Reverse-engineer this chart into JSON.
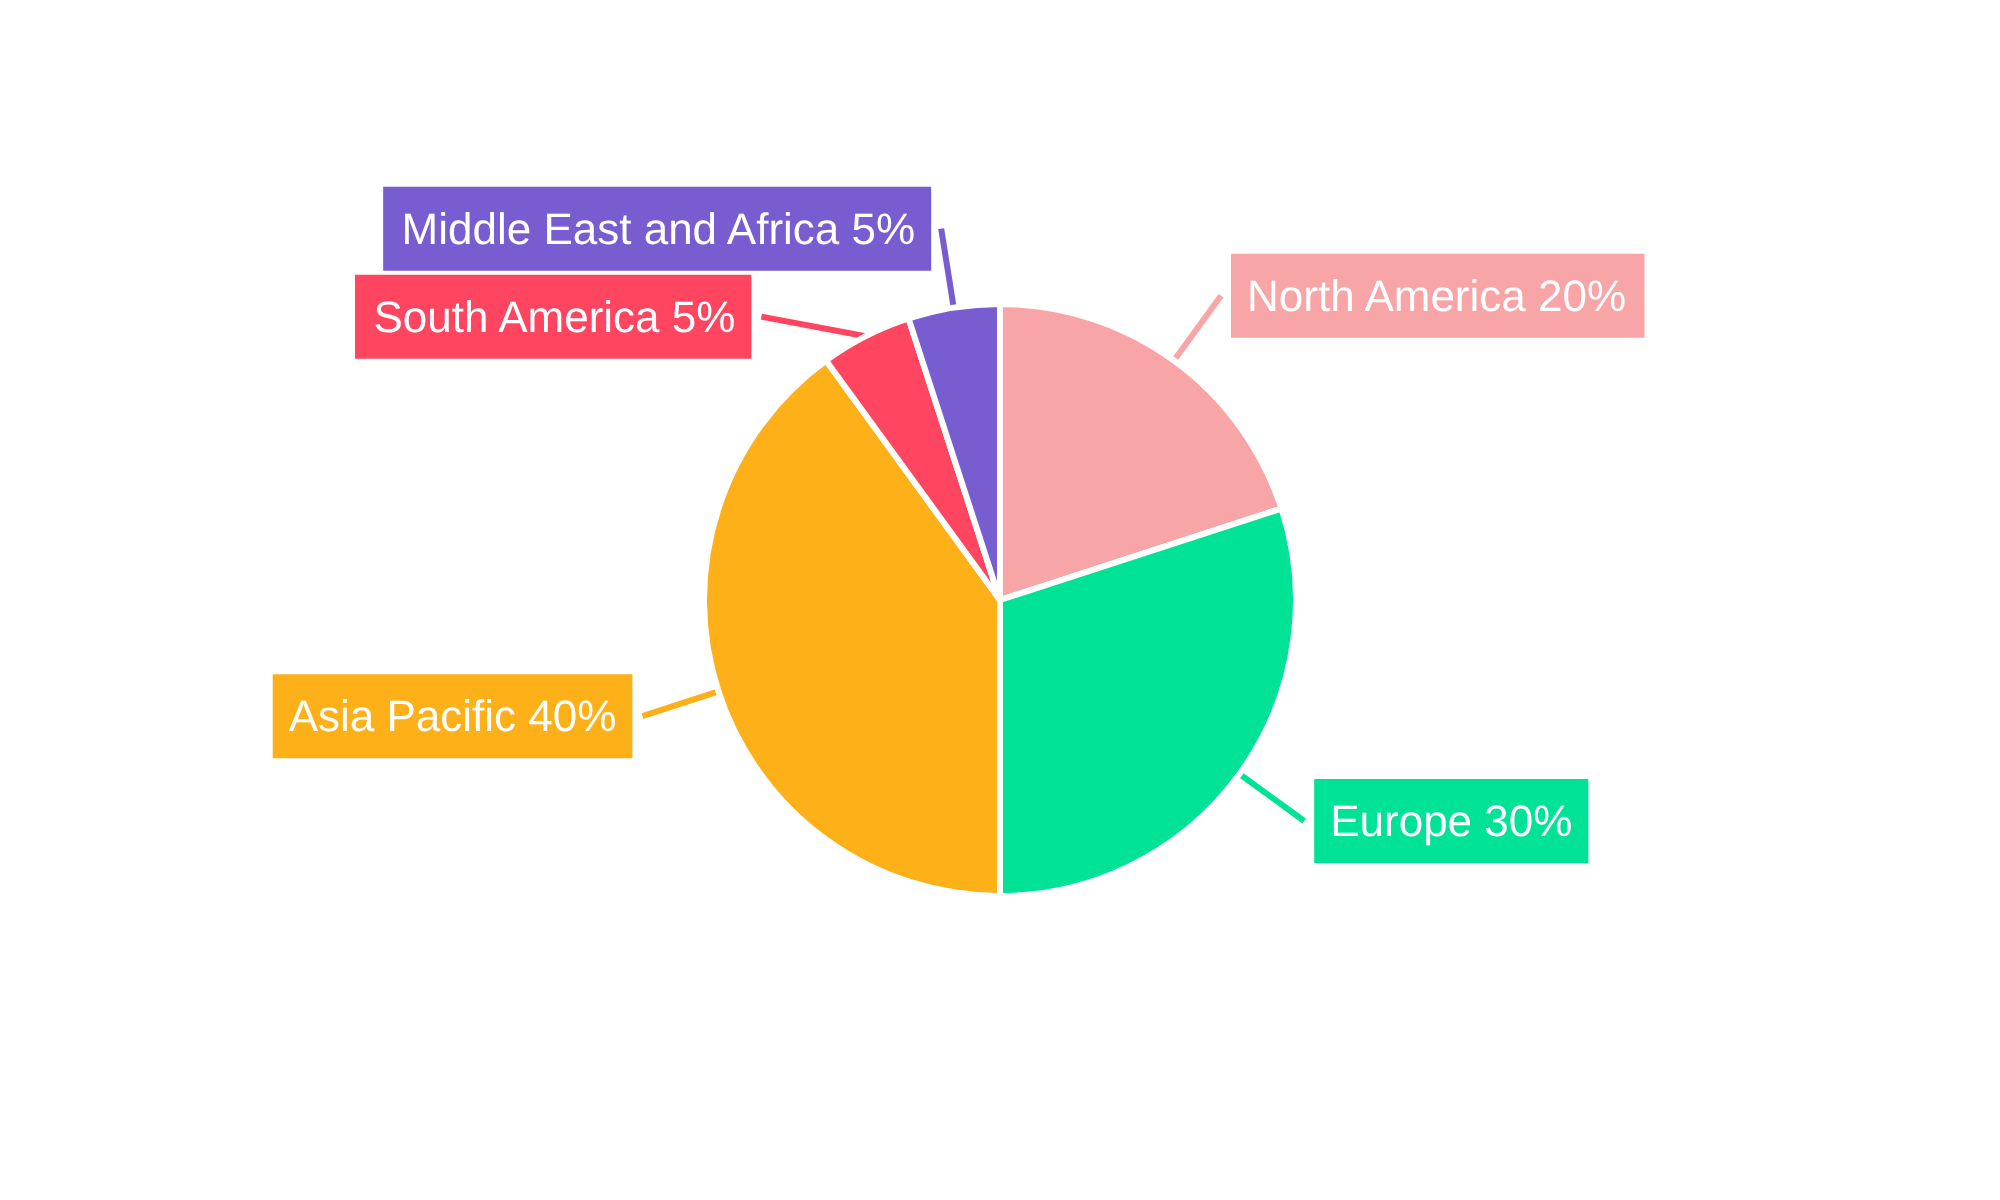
{
  "chart_data": {
    "type": "pie",
    "categories": [
      "North America",
      "Europe",
      "Asia Pacific",
      "South America",
      "Middle East and Africa"
    ],
    "values": [
      20,
      30,
      40,
      5,
      5
    ],
    "value_labels": [
      "20%",
      "30%",
      "40%",
      "5%",
      "5%"
    ],
    "colors": [
      "#f8a5a8",
      "#00e396",
      "#feb019",
      "#ff4560",
      "#775dd0"
    ],
    "legend": false
  }
}
